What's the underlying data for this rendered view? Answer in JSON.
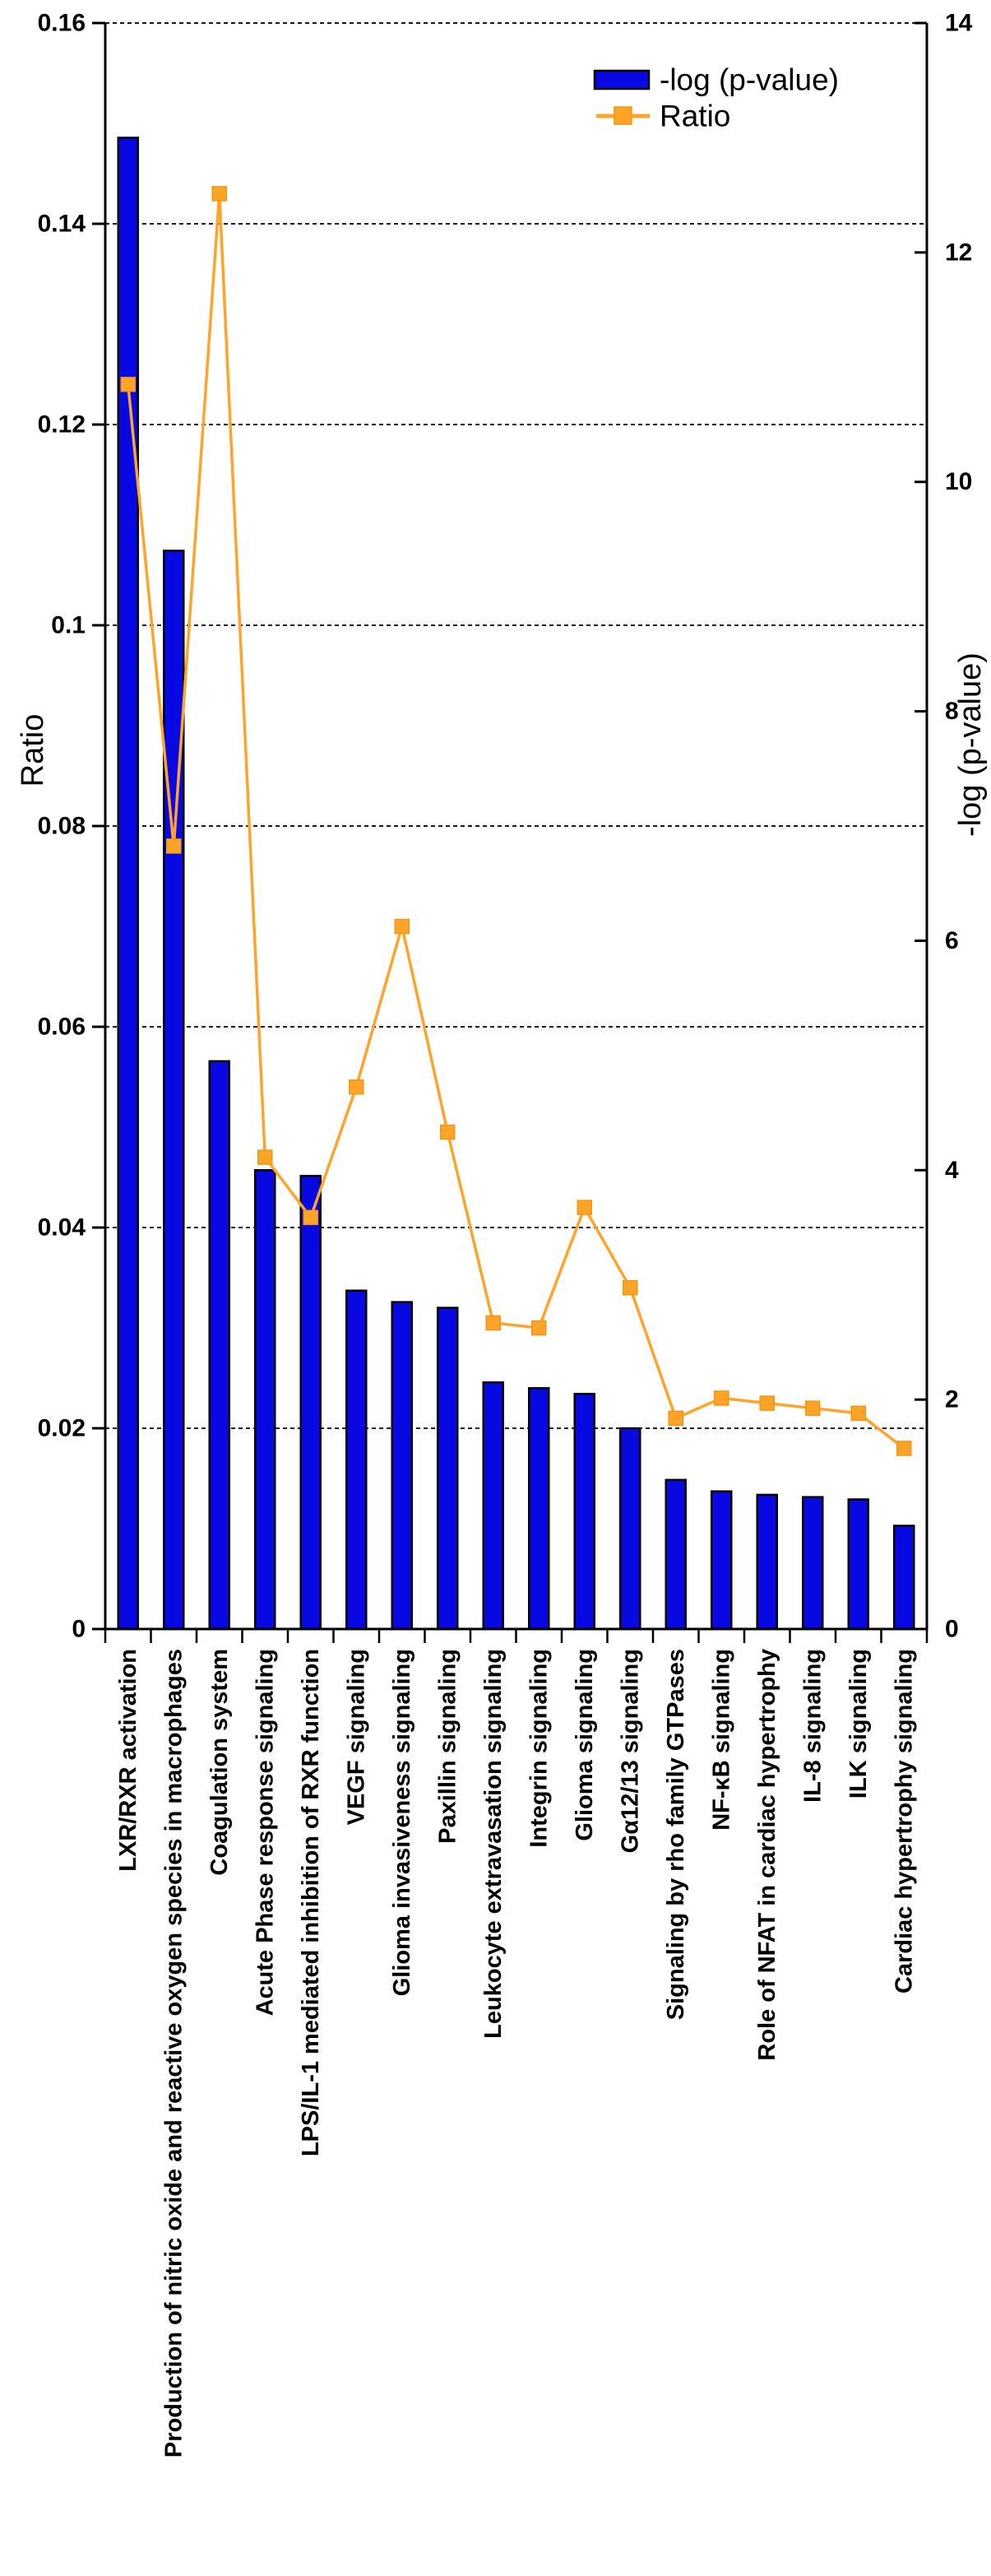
{
  "chart_data": {
    "type": "bar",
    "combo": "bar+line dual axis",
    "categories": [
      "LXR/RXR activation",
      "Production of nitric oxide and  reactive oxygen species in macrophages",
      "Coagulation system",
      "Acute Phase  response signaling",
      "LPS/IL-1 mediated inhibition of RXR  function",
      "VEGF signaling",
      "Glioma invasiveness signaling",
      "Paxillin signaling",
      "Leukocyte extravasation signaling",
      "Integrin signaling",
      "Glioma signaling",
      "Gα12/13 signaling",
      "Signaling by  rho  family GTPases",
      "NF-κB signaling",
      "Role of NFAT in cardiac hypertrophy",
      "IL-8 signaling",
      "ILK signaling",
      "Cardiac hypertrophy signaling"
    ],
    "series": [
      {
        "name": "-log (p-value)",
        "type": "bar",
        "axis": "right",
        "color": "#0808e2",
        "stroke": "#000000",
        "values": [
          13.0,
          9.4,
          4.95,
          4.0,
          3.95,
          2.95,
          2.85,
          2.8,
          2.15,
          2.1,
          2.05,
          1.75,
          1.3,
          1.2,
          1.17,
          1.15,
          1.13,
          0.9
        ]
      },
      {
        "name": "Ratio",
        "type": "line",
        "axis": "left",
        "color": "#ffa428",
        "marker": "square",
        "values": [
          0.124,
          0.078,
          0.143,
          0.047,
          0.041,
          0.054,
          0.07,
          0.0495,
          0.0305,
          0.03,
          0.042,
          0.034,
          0.021,
          0.023,
          0.0225,
          0.022,
          0.0215,
          0.018
        ]
      }
    ],
    "left_axis": {
      "title": "Ratio",
      "min": 0,
      "max": 0.16,
      "tick_labels": [
        "0.16",
        "0.14",
        "0.12",
        "0.1",
        "0.08",
        "0.06",
        "0.04",
        "0.02",
        "0"
      ]
    },
    "right_axis": {
      "title": "-log (p-value)",
      "min": 0,
      "max": 14,
      "tick_labels": [
        "14",
        "12",
        "10",
        "8",
        "6",
        "4",
        "2",
        "0"
      ]
    },
    "legend": {
      "position": "top-center-right",
      "entries": [
        {
          "label": "-log (p-value)",
          "swatch": "bar"
        },
        {
          "label": "Ratio",
          "swatch": "line-marker"
        }
      ]
    },
    "grid": {
      "horizontal": true,
      "style": "dashed",
      "color": "#1a1a1a"
    },
    "background": "#ffffff"
  }
}
